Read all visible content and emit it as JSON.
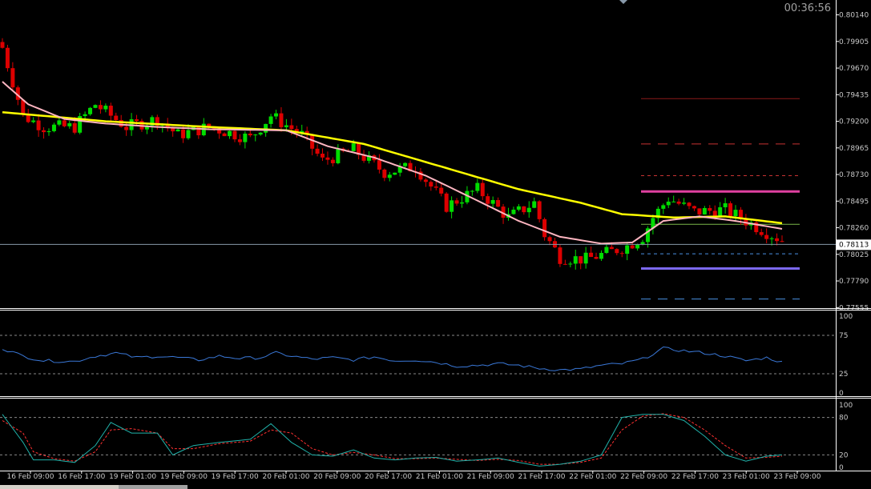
{
  "clock": "00:36:56",
  "colors": {
    "background": "#000000",
    "frame": "#ffffff",
    "bull": "#00dd00",
    "bear": "#dd0000",
    "ma_slow": "#ffff00",
    "ma_fast": "#ffb6c1",
    "rsi": "#3a78d8",
    "stoch_main": "#20b2aa",
    "stoch_signal": "#ff3030",
    "levels": "#888888",
    "price_line": "#8899aa"
  },
  "chart_data": [
    {
      "type": "candlestick",
      "price_ticks": [
        "0.80140",
        "0.79905",
        "0.79670",
        "0.79435",
        "0.79200",
        "0.78965",
        "0.78730",
        "0.78495",
        "0.78260",
        "0.78025",
        "0.77790",
        "0.77555"
      ],
      "ylim": [
        0.7755,
        0.8025
      ],
      "current_price": "0.78113",
      "time_labels": [
        "16 Feb 09:00",
        "16 Feb 17:00",
        "19 Feb 01:00",
        "19 Feb 09:00",
        "19 Feb 17:00",
        "20 Feb 01:00",
        "20 Feb 09:00",
        "20 Feb 17:00",
        "21 Feb 01:00",
        "21 Feb 09:00",
        "21 Feb 17:00",
        "22 Feb 01:00",
        "22 Feb 09:00",
        "22 Feb 17:00",
        "23 Feb 01:00",
        "23 Feb 09:00"
      ],
      "close_path": [
        [
          0,
          0.7985
        ],
        [
          4,
          0.7925
        ],
        [
          8,
          0.7915
        ],
        [
          14,
          0.7915
        ],
        [
          18,
          0.7935
        ],
        [
          24,
          0.7915
        ],
        [
          30,
          0.7922
        ],
        [
          34,
          0.7908
        ],
        [
          40,
          0.7915
        ],
        [
          48,
          0.7905
        ],
        [
          52,
          0.7925
        ],
        [
          58,
          0.7908
        ],
        [
          62,
          0.7885
        ],
        [
          68,
          0.7895
        ],
        [
          74,
          0.7875
        ],
        [
          80,
          0.788
        ],
        [
          86,
          0.7845
        ],
        [
          92,
          0.786
        ],
        [
          98,
          0.7835
        ],
        [
          103,
          0.7848
        ],
        [
          105,
          0.782
        ],
        [
          108,
          0.78
        ],
        [
          113,
          0.7798
        ],
        [
          118,
          0.7805
        ],
        [
          121,
          0.781
        ],
        [
          124,
          0.7818
        ],
        [
          126,
          0.7835
        ],
        [
          129,
          0.7852
        ],
        [
          134,
          0.784
        ],
        [
          140,
          0.7842
        ],
        [
          144,
          0.7832
        ],
        [
          148,
          0.7822
        ],
        [
          151,
          0.7815
        ]
      ],
      "ma_slow": [
        [
          0,
          0.7928
        ],
        [
          20,
          0.792
        ],
        [
          40,
          0.7915
        ],
        [
          55,
          0.7912
        ],
        [
          70,
          0.79
        ],
        [
          85,
          0.788
        ],
        [
          100,
          0.786
        ],
        [
          112,
          0.7848
        ],
        [
          120,
          0.7838
        ],
        [
          130,
          0.7835
        ],
        [
          140,
          0.7836
        ],
        [
          151,
          0.783
        ]
      ],
      "ma_fast": [
        [
          0,
          0.7955
        ],
        [
          5,
          0.7935
        ],
        [
          12,
          0.7922
        ],
        [
          20,
          0.7918
        ],
        [
          30,
          0.7915
        ],
        [
          40,
          0.7913
        ],
        [
          55,
          0.7912
        ],
        [
          63,
          0.7898
        ],
        [
          72,
          0.7888
        ],
        [
          82,
          0.7872
        ],
        [
          92,
          0.785
        ],
        [
          100,
          0.7832
        ],
        [
          108,
          0.7818
        ],
        [
          116,
          0.7812
        ],
        [
          122,
          0.7813
        ],
        [
          128,
          0.7832
        ],
        [
          135,
          0.7836
        ],
        [
          142,
          0.7832
        ],
        [
          151,
          0.7825
        ]
      ],
      "levels": [
        {
          "price": 0.794,
          "style": "solid",
          "color": "#8b1a1a"
        },
        {
          "price": 0.79,
          "style": "dashed",
          "color": "#c83232"
        },
        {
          "price": 0.7872,
          "style": "dotted",
          "color": "#c83232"
        },
        {
          "price": 0.7858,
          "style": "solid",
          "color": "#e040a0"
        },
        {
          "price": 0.7829,
          "style": "solid",
          "color": "#7ab84a"
        },
        {
          "price": 0.7803,
          "style": "dotted",
          "color": "#4a90e2"
        },
        {
          "price": 0.779,
          "style": "solid",
          "color": "#7b68ee"
        },
        {
          "price": 0.7763,
          "style": "dashed",
          "color": "#4a90e2"
        }
      ]
    },
    {
      "type": "line",
      "indicator": "RSI",
      "yticks": [
        "100",
        "75",
        "25",
        "0"
      ],
      "ylim": [
        0,
        100
      ],
      "levels": [
        75,
        25
      ],
      "values": [
        [
          0,
          58
        ],
        [
          4,
          48
        ],
        [
          8,
          42
        ],
        [
          14,
          41
        ],
        [
          18,
          48
        ],
        [
          22,
          52
        ],
        [
          26,
          46
        ],
        [
          30,
          48
        ],
        [
          34,
          46
        ],
        [
          38,
          43
        ],
        [
          42,
          48
        ],
        [
          46,
          45
        ],
        [
          50,
          46
        ],
        [
          53,
          52
        ],
        [
          56,
          48
        ],
        [
          60,
          44
        ],
        [
          64,
          46
        ],
        [
          68,
          43
        ],
        [
          72,
          47
        ],
        [
          76,
          42
        ],
        [
          80,
          43
        ],
        [
          84,
          40
        ],
        [
          88,
          35
        ],
        [
          92,
          36
        ],
        [
          96,
          38
        ],
        [
          100,
          36
        ],
        [
          104,
          32
        ],
        [
          108,
          30
        ],
        [
          112,
          31
        ],
        [
          116,
          36
        ],
        [
          120,
          38
        ],
        [
          124,
          44
        ],
        [
          128,
          58
        ],
        [
          132,
          55
        ],
        [
          136,
          52
        ],
        [
          140,
          48
        ],
        [
          144,
          42
        ],
        [
          148,
          46
        ],
        [
          151,
          40
        ]
      ]
    },
    {
      "type": "line",
      "indicator": "Stochastic",
      "yticks": [
        "100",
        "80",
        "20",
        "0"
      ],
      "ylim": [
        0,
        100
      ],
      "levels": [
        80,
        20
      ],
      "main": [
        [
          0,
          85
        ],
        [
          4,
          40
        ],
        [
          6,
          12
        ],
        [
          10,
          12
        ],
        [
          14,
          8
        ],
        [
          18,
          35
        ],
        [
          21,
          72
        ],
        [
          25,
          55
        ],
        [
          30,
          55
        ],
        [
          33,
          20
        ],
        [
          37,
          35
        ],
        [
          42,
          40
        ],
        [
          48,
          45
        ],
        [
          52,
          70
        ],
        [
          56,
          40
        ],
        [
          60,
          20
        ],
        [
          64,
          18
        ],
        [
          68,
          28
        ],
        [
          72,
          15
        ],
        [
          76,
          12
        ],
        [
          80,
          15
        ],
        [
          84,
          16
        ],
        [
          88,
          10
        ],
        [
          92,
          12
        ],
        [
          96,
          15
        ],
        [
          100,
          8
        ],
        [
          104,
          2
        ],
        [
          108,
          5
        ],
        [
          112,
          10
        ],
        [
          116,
          20
        ],
        [
          120,
          80
        ],
        [
          124,
          85
        ],
        [
          128,
          85
        ],
        [
          132,
          75
        ],
        [
          136,
          50
        ],
        [
          140,
          20
        ],
        [
          144,
          10
        ],
        [
          148,
          18
        ],
        [
          151,
          20
        ]
      ],
      "signal": [
        [
          0,
          75
        ],
        [
          4,
          55
        ],
        [
          6,
          25
        ],
        [
          10,
          14
        ],
        [
          14,
          10
        ],
        [
          18,
          25
        ],
        [
          21,
          60
        ],
        [
          25,
          62
        ],
        [
          30,
          55
        ],
        [
          33,
          30
        ],
        [
          37,
          30
        ],
        [
          42,
          38
        ],
        [
          48,
          42
        ],
        [
          52,
          60
        ],
        [
          56,
          55
        ],
        [
          60,
          30
        ],
        [
          64,
          20
        ],
        [
          68,
          24
        ],
        [
          72,
          20
        ],
        [
          76,
          14
        ],
        [
          80,
          14
        ],
        [
          84,
          15
        ],
        [
          88,
          13
        ],
        [
          92,
          11
        ],
        [
          96,
          13
        ],
        [
          100,
          11
        ],
        [
          104,
          5
        ],
        [
          108,
          5
        ],
        [
          112,
          8
        ],
        [
          116,
          15
        ],
        [
          120,
          60
        ],
        [
          124,
          82
        ],
        [
          128,
          86
        ],
        [
          132,
          80
        ],
        [
          136,
          60
        ],
        [
          140,
          35
        ],
        [
          144,
          15
        ],
        [
          148,
          16
        ],
        [
          151,
          18
        ]
      ]
    }
  ]
}
